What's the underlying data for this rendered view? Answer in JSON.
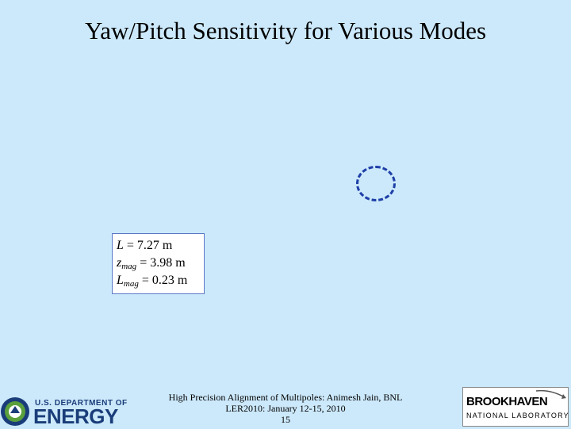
{
  "slide": {
    "title": "Yaw/Pitch Sensitivity for Various Modes",
    "formula": [
      {
        "var": "L",
        "sub": "",
        "op": "= 7.27 m"
      },
      {
        "var": "z",
        "sub": "mag",
        "op": "= 3.98 m"
      },
      {
        "var": "L",
        "sub": "mag",
        "op": "= 0.23 m"
      }
    ],
    "footer": {
      "line1": "High Precision Alignment of Multipoles: Animesh Jain, BNL",
      "line2": "LER2010: January 12-15, 2010",
      "page": "15"
    },
    "logos": {
      "doe_top": "U.S. DEPARTMENT OF",
      "doe_main": "ENERGY",
      "bnl_top": "BROOKHAVEN",
      "bnl_bottom": "NATIONAL LABORATORY"
    },
    "colors": {
      "background": "#cce9fb",
      "dashed_circle": "#1f3fa8",
      "doe_blue": "#1a3d7a",
      "doe_green": "#5aa03c"
    }
  }
}
